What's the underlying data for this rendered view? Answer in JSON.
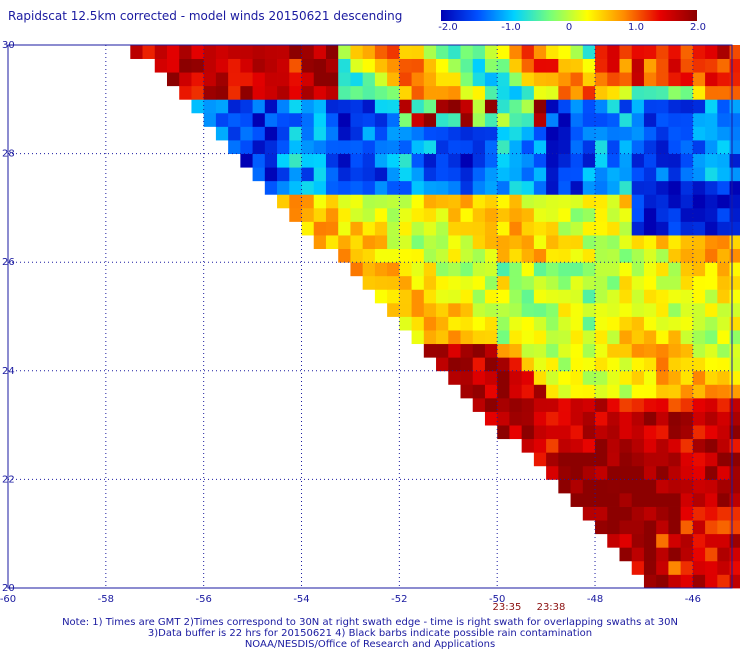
{
  "title": "Rapidscat 12.5km corrected - model winds 20150621 descending",
  "colorbar": {
    "ticks": [
      "-2.0",
      "-1.0",
      "0",
      "1.0",
      "2.0"
    ],
    "tick_values": [
      -2.0,
      -1.0,
      0,
      1.0,
      2.0
    ],
    "colors": [
      "#0000b4",
      "#0050ff",
      "#00d2ff",
      "#78ff78",
      "#ffff00",
      "#ff8c00",
      "#e60000",
      "#8c0000"
    ]
  },
  "chart_data": {
    "type": "heatmap",
    "x_ticks": [
      "-60",
      "-58",
      "-56",
      "-54",
      "-52",
      "-50",
      "-48",
      "-46"
    ],
    "y_ticks": [
      "30",
      "28",
      "26",
      "24",
      "22",
      "20"
    ],
    "xlim": [
      -60,
      -45.2
    ],
    "ylim": [
      20,
      30
    ],
    "time_labels": [
      {
        "text": "23:35",
        "lon": -49.8
      },
      {
        "text": "23:38",
        "lon": -48.9
      }
    ],
    "cell_size_deg": 0.25,
    "swath_edge": {
      "description": "left swath edge runs from (-57.5, 30) to (-46.8, 20)"
    },
    "value_regions": [
      {
        "name": "north red band",
        "lat": [
          28.8,
          30
        ],
        "lon": [
          -57.5,
          -53.5
        ],
        "value": 1.6
      },
      {
        "name": "central blue band",
        "lat": [
          27.2,
          28.9
        ],
        "lon": [
          -56,
          -45.2
        ],
        "value": -1.4
      },
      {
        "name": "east deep blue",
        "lat": [
          26.5,
          27.5
        ],
        "lon": [
          -47,
          -45.2
        ],
        "value": -2.0
      },
      {
        "name": "south red region",
        "lat": [
          20,
          23.5
        ],
        "lon": [
          -49,
          -45.2
        ],
        "value": 1.8
      },
      {
        "name": "mid yellow-green",
        "lat": [
          23.5,
          27
        ],
        "lon": [
          -52,
          -45.2
        ],
        "value": 0.4
      }
    ]
  },
  "notes": [
    "Note: 1) Times are GMT 2)Times correspond to 30N at right swath edge - time is right swath for overlapping swaths at 30N",
    "3)Data buffer is 22 hrs for 20150621 4) Black barbs indicate possible rain contamination",
    "NOAA/NESDIS/Office of Research and Applications"
  ]
}
